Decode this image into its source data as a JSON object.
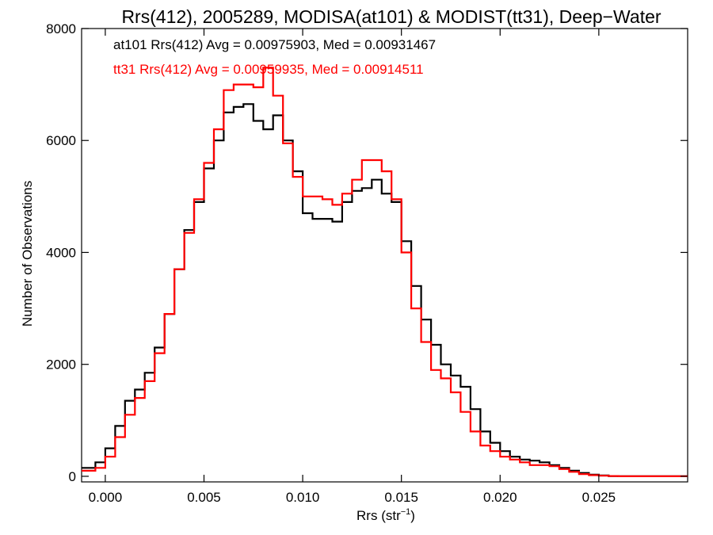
{
  "chart_data": {
    "type": "line",
    "title": "Rrs(412), 2005289, MODISA(at101) & MODIST(tt31), Deep−Water",
    "xlabel": "Rrs (str",
    "xlabel_sup": "−1",
    "xlabel_close": ")",
    "ylabel": "Number of Observations",
    "xlim": [
      -0.0012,
      0.0295
    ],
    "ylim": [
      -100,
      8000
    ],
    "xticks": [
      0.0,
      0.005,
      0.01,
      0.015,
      0.02,
      0.025
    ],
    "xtick_labels": [
      "0.000",
      "0.005",
      "0.010",
      "0.015",
      "0.020",
      "0.025"
    ],
    "yticks": [
      0,
      2000,
      4000,
      6000,
      8000
    ],
    "ytick_labels": [
      "0",
      "2000",
      "4000",
      "6000",
      "8000"
    ],
    "grid": false,
    "annotations": [
      {
        "text": "at101 Rrs(412) Avg = 0.00975903, Med = 0.00931467",
        "color": "#000000"
      },
      {
        "text": "tt31 Rrs(412) Avg = 0.00959935, Med = 0.00914511",
        "color": "#ff0000"
      }
    ],
    "series": [
      {
        "color": "#000000",
        "x": [
          -0.0012,
          -0.0005,
          0.0,
          0.0005,
          0.001,
          0.0015,
          0.002,
          0.0025,
          0.003,
          0.0035,
          0.004,
          0.0045,
          0.005,
          0.0055,
          0.006,
          0.0065,
          0.007,
          0.0075,
          0.008,
          0.0085,
          0.009,
          0.0095,
          0.01,
          0.0105,
          0.011,
          0.0115,
          0.012,
          0.0125,
          0.013,
          0.0135,
          0.014,
          0.0145,
          0.015,
          0.0155,
          0.016,
          0.0165,
          0.017,
          0.0175,
          0.018,
          0.0185,
          0.019,
          0.0195,
          0.02,
          0.0205,
          0.021,
          0.0215,
          0.022,
          0.0225,
          0.023,
          0.0235,
          0.024,
          0.0245,
          0.025,
          0.0255,
          0.026,
          0.027,
          0.028,
          0.029,
          0.0295
        ],
        "y": [
          150,
          250,
          500,
          900,
          1350,
          1550,
          1850,
          2300,
          2900,
          3700,
          4400,
          4900,
          5500,
          6000,
          6500,
          6600,
          6650,
          6350,
          6200,
          6450,
          6000,
          5450,
          4700,
          4600,
          4600,
          4550,
          4900,
          5100,
          5150,
          5300,
          5050,
          4900,
          4200,
          3400,
          2800,
          2350,
          2000,
          1800,
          1600,
          1200,
          800,
          600,
          450,
          350,
          300,
          280,
          250,
          200,
          150,
          100,
          60,
          30,
          15,
          5,
          0,
          0,
          0,
          0,
          0
        ]
      },
      {
        "color": "#ff0000",
        "x": [
          -0.0012,
          -0.0005,
          0.0,
          0.0005,
          0.001,
          0.0015,
          0.002,
          0.0025,
          0.003,
          0.0035,
          0.004,
          0.0045,
          0.005,
          0.0055,
          0.006,
          0.0065,
          0.007,
          0.0075,
          0.008,
          0.0085,
          0.009,
          0.0095,
          0.01,
          0.0105,
          0.011,
          0.0115,
          0.012,
          0.0125,
          0.013,
          0.0135,
          0.014,
          0.0145,
          0.015,
          0.0155,
          0.016,
          0.0165,
          0.017,
          0.0175,
          0.018,
          0.0185,
          0.019,
          0.0195,
          0.02,
          0.0205,
          0.021,
          0.0215,
          0.022,
          0.0225,
          0.023,
          0.0235,
          0.024,
          0.0245,
          0.025,
          0.0255,
          0.026,
          0.027,
          0.028,
          0.029,
          0.0295
        ],
        "y": [
          100,
          150,
          350,
          700,
          1100,
          1400,
          1700,
          2200,
          2900,
          3700,
          4350,
          4950,
          5600,
          6200,
          6900,
          7000,
          7000,
          6950,
          7300,
          6800,
          5950,
          5350,
          5000,
          5000,
          4950,
          4850,
          5050,
          5300,
          5650,
          5650,
          5450,
          4950,
          4000,
          3000,
          2400,
          1900,
          1750,
          1500,
          1150,
          800,
          550,
          450,
          350,
          300,
          250,
          200,
          200,
          180,
          130,
          80,
          40,
          20,
          10,
          5,
          0,
          0,
          0,
          0,
          0
        ]
      }
    ]
  }
}
